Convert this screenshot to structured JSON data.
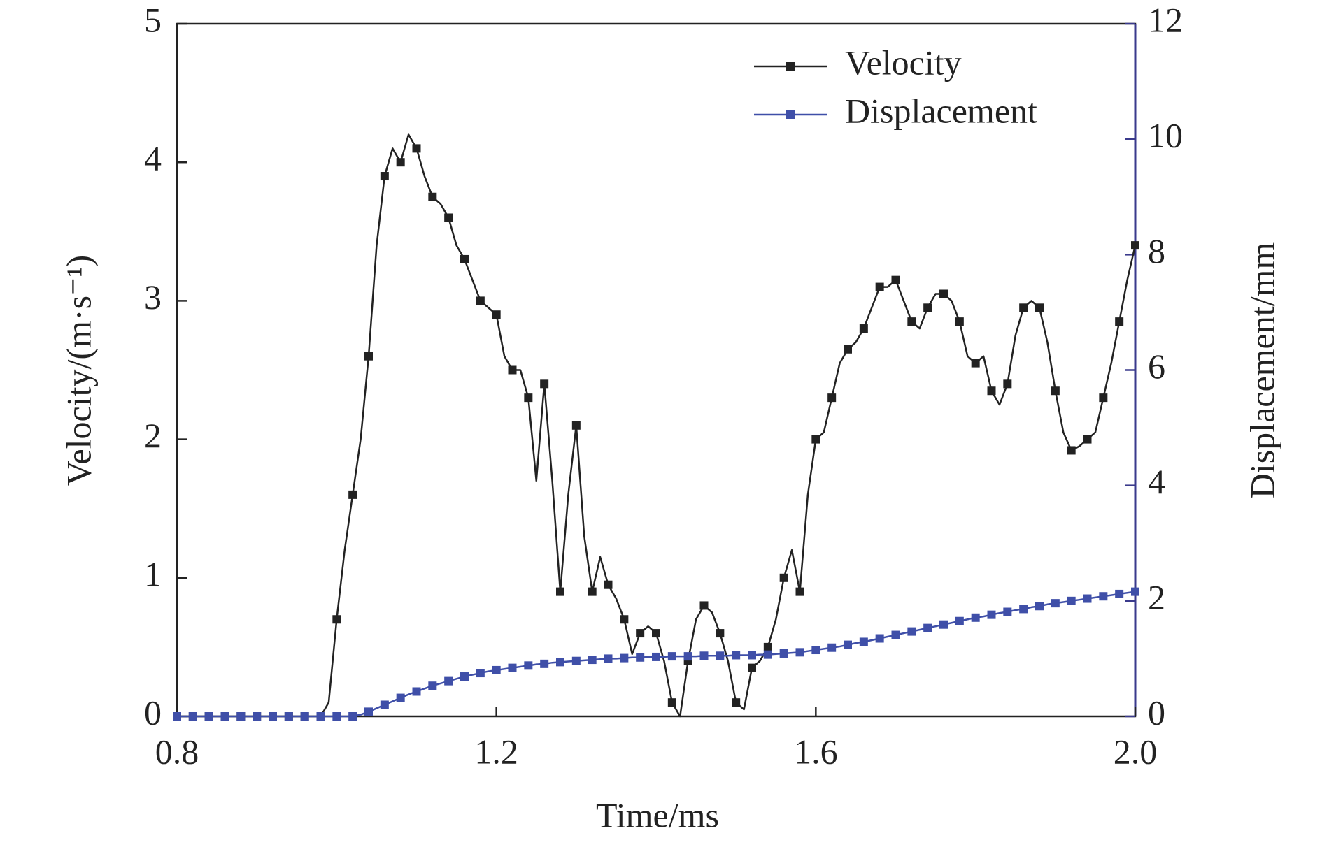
{
  "chart_data": {
    "type": "line",
    "xlabel": "Time/ms",
    "ylabel": "Velocity/(m·s⁻¹)",
    "y2label": "Displacement/mm",
    "x": [
      0.8,
      0.81,
      0.82,
      0.83,
      0.84,
      0.85,
      0.86,
      0.87,
      0.88,
      0.89,
      0.9,
      0.91,
      0.92,
      0.93,
      0.94,
      0.95,
      0.96,
      0.97,
      0.98,
      0.99,
      1.0,
      1.01,
      1.02,
      1.03,
      1.04,
      1.05,
      1.06,
      1.07,
      1.08,
      1.09,
      1.1,
      1.11,
      1.12,
      1.13,
      1.14,
      1.15,
      1.16,
      1.17,
      1.18,
      1.19,
      1.2,
      1.21,
      1.22,
      1.23,
      1.24,
      1.25,
      1.26,
      1.27,
      1.28,
      1.29,
      1.3,
      1.31,
      1.32,
      1.33,
      1.34,
      1.35,
      1.36,
      1.37,
      1.38,
      1.39,
      1.4,
      1.41,
      1.42,
      1.43,
      1.44,
      1.45,
      1.46,
      1.47,
      1.48,
      1.49,
      1.5,
      1.51,
      1.52,
      1.53,
      1.54,
      1.55,
      1.56,
      1.57,
      1.58,
      1.59,
      1.6,
      1.61,
      1.62,
      1.63,
      1.64,
      1.65,
      1.66,
      1.67,
      1.68,
      1.69,
      1.7,
      1.71,
      1.72,
      1.73,
      1.74,
      1.75,
      1.76,
      1.77,
      1.78,
      1.79,
      1.8,
      1.81,
      1.82,
      1.83,
      1.84,
      1.85,
      1.86,
      1.87,
      1.88,
      1.89,
      1.9,
      1.91,
      1.92,
      1.93,
      1.94,
      1.95,
      1.96,
      1.97,
      1.98,
      1.99,
      2.0
    ],
    "series": [
      {
        "name": "Velocity",
        "color": "#222222",
        "axis": "y",
        "values": [
          0,
          0,
          0,
          0,
          0,
          0,
          0,
          0,
          0,
          0,
          0,
          0,
          0,
          0,
          0,
          0,
          0,
          0,
          0,
          0.1,
          0.7,
          1.2,
          1.6,
          2.0,
          2.6,
          3.4,
          3.9,
          4.1,
          4.0,
          4.2,
          4.1,
          3.9,
          3.75,
          3.7,
          3.6,
          3.4,
          3.3,
          3.15,
          3.0,
          2.95,
          2.9,
          2.6,
          2.5,
          2.5,
          2.3,
          1.7,
          2.4,
          1.7,
          0.9,
          1.6,
          2.1,
          1.3,
          0.9,
          1.15,
          0.95,
          0.85,
          0.7,
          0.45,
          0.6,
          0.65,
          0.6,
          0.4,
          0.1,
          0.0,
          0.4,
          0.7,
          0.8,
          0.75,
          0.6,
          0.4,
          0.1,
          0.05,
          0.35,
          0.4,
          0.5,
          0.7,
          1.0,
          1.2,
          0.9,
          1.6,
          2.0,
          2.05,
          2.3,
          2.55,
          2.65,
          2.7,
          2.8,
          2.95,
          3.1,
          3.1,
          3.15,
          3.0,
          2.85,
          2.8,
          2.95,
          3.05,
          3.05,
          3.0,
          2.85,
          2.6,
          2.55,
          2.6,
          2.35,
          2.25,
          2.4,
          2.75,
          2.95,
          3.0,
          2.95,
          2.7,
          2.35,
          2.05,
          1.92,
          1.95,
          2.0,
          2.05,
          2.3,
          2.55,
          2.85,
          3.15,
          3.4
        ]
      },
      {
        "name": "Displacement",
        "color": "#3f4fa8",
        "axis": "y2",
        "values": [
          0,
          0,
          0,
          0,
          0,
          0,
          0,
          0,
          0,
          0,
          0,
          0,
          0,
          0,
          0,
          0,
          0,
          0,
          0,
          0,
          0,
          0,
          0,
          0.03,
          0.08,
          0.14,
          0.2,
          0.26,
          0.32,
          0.38,
          0.43,
          0.48,
          0.53,
          0.57,
          0.61,
          0.65,
          0.69,
          0.72,
          0.75,
          0.78,
          0.8,
          0.82,
          0.84,
          0.86,
          0.88,
          0.9,
          0.91,
          0.93,
          0.94,
          0.95,
          0.96,
          0.97,
          0.98,
          0.99,
          1.0,
          1.0,
          1.01,
          1.02,
          1.02,
          1.03,
          1.03,
          1.03,
          1.04,
          1.04,
          1.04,
          1.04,
          1.05,
          1.05,
          1.05,
          1.05,
          1.06,
          1.06,
          1.06,
          1.07,
          1.07,
          1.08,
          1.09,
          1.1,
          1.11,
          1.13,
          1.15,
          1.17,
          1.19,
          1.21,
          1.24,
          1.27,
          1.29,
          1.32,
          1.35,
          1.38,
          1.41,
          1.44,
          1.47,
          1.5,
          1.53,
          1.56,
          1.59,
          1.62,
          1.65,
          1.68,
          1.71,
          1.73,
          1.76,
          1.79,
          1.81,
          1.84,
          1.86,
          1.89,
          1.91,
          1.94,
          1.96,
          1.98,
          2.0,
          2.02,
          2.04,
          2.06,
          2.08,
          2.1,
          2.12,
          2.14,
          2.16
        ]
      }
    ],
    "xlim": [
      0.8,
      2.0
    ],
    "xticks": [
      0.8,
      1.2,
      1.6,
      {
        "value": 2,
        "label": "2.0"
      }
    ],
    "ylim": [
      0,
      5
    ],
    "yticks": [
      0,
      1,
      2,
      3,
      4,
      5
    ],
    "y2lim": [
      0,
      12
    ],
    "y2ticks": [
      0,
      2,
      4,
      6,
      8,
      10,
      12
    ],
    "y2_color": "#3a3a8c",
    "legend": "upper right",
    "grid": false
  }
}
